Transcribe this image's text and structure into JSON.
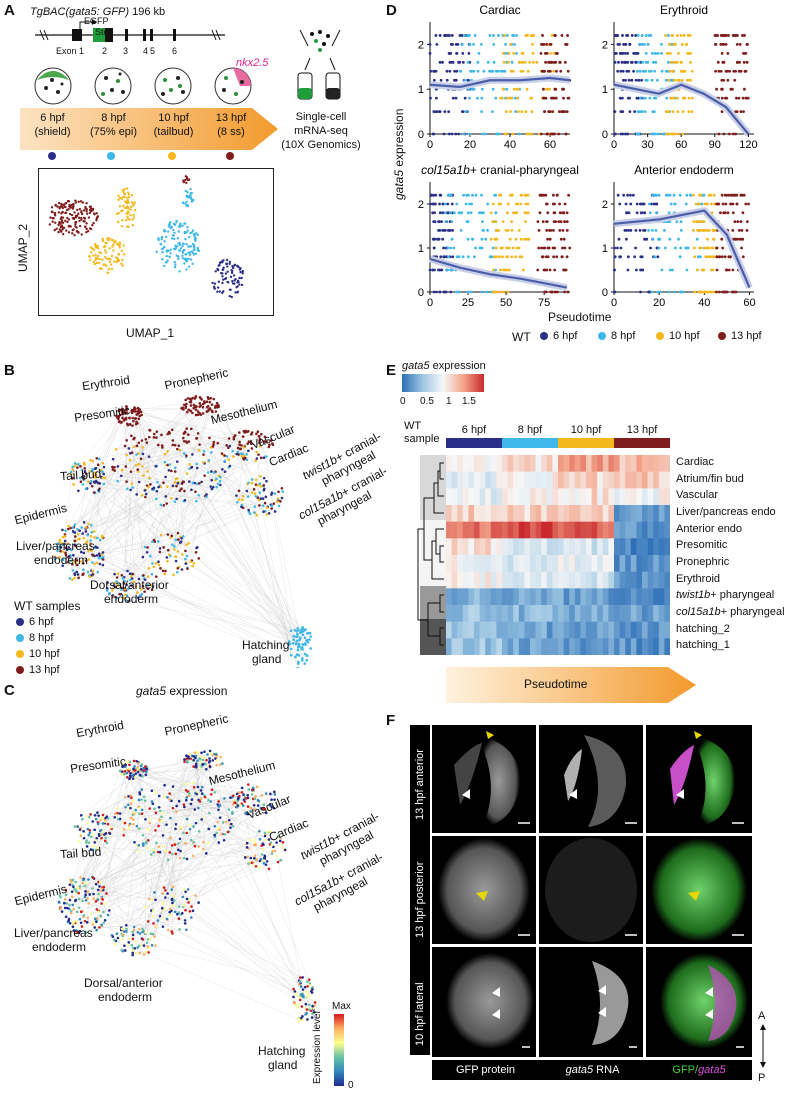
{
  "panels": {
    "A": "A",
    "B": "B",
    "C": "C",
    "D": "D",
    "E": "E",
    "F": "F"
  },
  "colors": {
    "h6": "#2b2f87",
    "h8": "#3db8e8",
    "h10": "#f4b81c",
    "h13": "#7f1d1d",
    "fit": "#4a5eab",
    "orange": "#f39a2c"
  },
  "panelA": {
    "construct_title": "TgBAC(gata5: GFP)",
    "construct_size": "196 kb",
    "egfp": "EGFP",
    "stop": "Stop",
    "exons": [
      "Exon 1",
      "2",
      "3",
      "4",
      "5",
      "6"
    ],
    "nkx": "nkx2.5",
    "stages": [
      {
        "t": "6 hpf",
        "s": "(shield)"
      },
      {
        "t": "8 hpf",
        "s": "(75% epi)"
      },
      {
        "t": "10 hpf",
        "s": "(tailbud)"
      },
      {
        "t": "13 hpf",
        "s": "(8 ss)"
      }
    ],
    "seq": [
      "Single-cell",
      "mRNA-seq",
      "(10X Genomics)"
    ],
    "umap_x": "UMAP_1",
    "umap_y": "UMAP_2"
  },
  "panelB": {
    "labels": [
      "Erythroid",
      "Pronepheric",
      "Mesothelium",
      "Presomitic",
      "Vascular",
      "Cardiac",
      "Tail bud",
      "Epidermis",
      "Liver/pancreas",
      "endoderm",
      "Dorsal/anterior",
      "endoderm",
      "Hatching",
      "gland"
    ],
    "twist_a": "twist1b",
    "twist_b": "+ cranial-",
    "twist_c": "pharyngeal",
    "col_a": "col15a1b",
    "col_b": "+ cranial-",
    "col_c": "pharyngeal",
    "legend_title": "WT samples",
    "legend": [
      "6 hpf",
      "8 hpf",
      "10 hpf",
      "13 hpf"
    ]
  },
  "panelC": {
    "title_gene": "gata5",
    "title_rest": " expression",
    "bar_label": "Expression level",
    "bar_max": "Max",
    "bar_min": "0"
  },
  "panelD": {
    "ylabel_gene": "gata5",
    "ylabel_rest": " expression",
    "xlabel": "Pseudotime",
    "legend_prefix": "WT",
    "legend": [
      "6 hpf",
      "8 hpf",
      "10 hpf",
      "13 hpf"
    ],
    "subplots": [
      {
        "title": "Cardiac",
        "xticks": [
          "0",
          "20",
          "40",
          "60"
        ],
        "yticks": [
          "0",
          "1",
          "2"
        ]
      },
      {
        "title": "Erythroid",
        "xticks": [
          "0",
          "30",
          "60",
          "90",
          "120"
        ],
        "yticks": [
          "0",
          "1",
          "2"
        ]
      },
      {
        "title_i": "col15a1b",
        "title": "+ cranial-pharyngeal",
        "xticks": [
          "0",
          "25",
          "50",
          "75"
        ],
        "yticks": [
          "0",
          "1",
          "2"
        ]
      },
      {
        "title": "Anterior endoderm",
        "xticks": [
          "0",
          "20",
          "40",
          "60"
        ],
        "yticks": [
          "0",
          "1",
          "2"
        ]
      }
    ]
  },
  "panelE": {
    "title_gene": "gata5",
    "title_rest": " expression",
    "scale_ticks": [
      "0",
      "0.5",
      "1",
      "1.5"
    ],
    "wt1": "WT",
    "wt2": "sample",
    "cols": [
      "6 hpf",
      "8 hpf",
      "10 hpf",
      "13 hpf"
    ],
    "rows": [
      "Cardiac",
      "Atrium/fin bud",
      "Vascular",
      "Liver/pancreas endo",
      "Anterior endo",
      "Presomitic",
      "Pronephric",
      "Erythroid",
      "twist1b+ pharyngeal",
      "col15a1b+ pharyngeal",
      "hatching_2",
      "hatching_1"
    ],
    "pseudotime": "Pseudotime"
  },
  "panelF": {
    "rows": [
      "13 hpf anterior",
      "13 hpf posterior",
      "10 hpf lateral"
    ],
    "col1": "GFP protein",
    "col2_gene": "gata5",
    "col2_rest": " RNA",
    "col3_a": "GFP/",
    "col3_b": "gata5",
    "axis_a": "A",
    "axis_p": "P"
  }
}
